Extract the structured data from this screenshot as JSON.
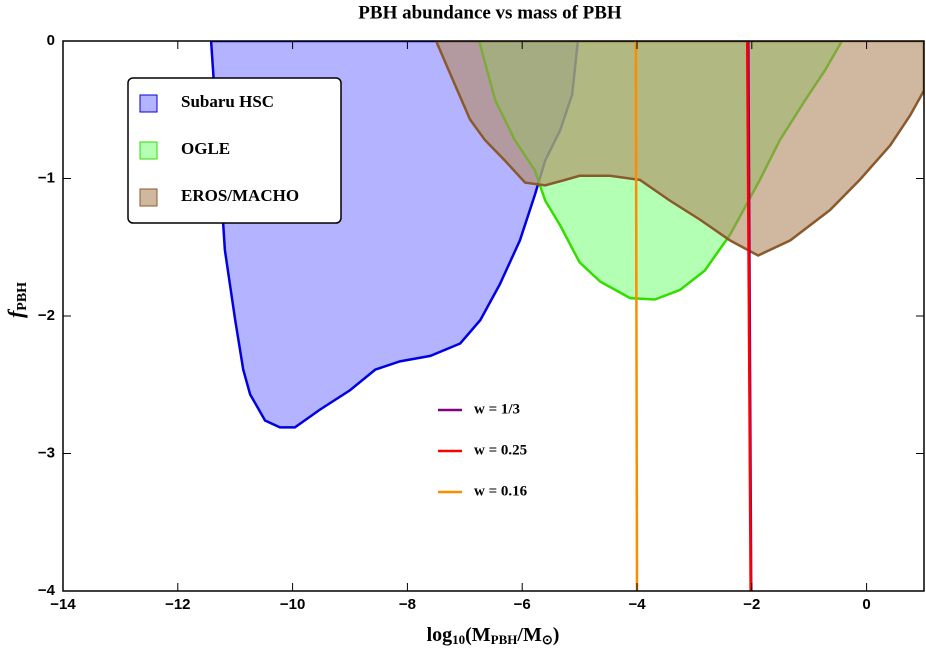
{
  "chart_data": {
    "type": "area",
    "title": "PBH abundance vs mass of PBH",
    "xlabel": [
      "log",
      "10",
      "(M",
      "PBH",
      "/M",
      "⊙",
      ")"
    ],
    "ylabel": [
      "f",
      "PBH"
    ],
    "xlim": [
      -14,
      1
    ],
    "ylim": [
      -4,
      0
    ],
    "xticks": [
      {
        "value": -14,
        "label": "−14"
      },
      {
        "value": -12,
        "label": "−12"
      },
      {
        "value": -10,
        "label": "−10"
      },
      {
        "value": -8,
        "label": "−8"
      },
      {
        "value": -6,
        "label": "−6"
      },
      {
        "value": -4,
        "label": "−4"
      },
      {
        "value": -2,
        "label": "−2"
      },
      0
    ],
    "yticks": [
      0,
      {
        "value": -1,
        "label": "−1"
      },
      {
        "value": -2,
        "label": "−2"
      },
      {
        "value": -3,
        "label": "−3"
      },
      {
        "value": -4,
        "label": "−4"
      }
    ],
    "legend": "upper left",
    "series": [
      {
        "name": "Subaru HSC",
        "type": "area",
        "color": "#8080ff",
        "edge": "#0000e0",
        "x": [
          -11.42,
          -11.26,
          -11.18,
          -11.0,
          -10.86,
          -10.74,
          -10.48,
          -10.22,
          -9.96,
          -9.52,
          -9.0,
          -8.56,
          -8.13,
          -7.6,
          -7.08,
          -6.73,
          -6.39,
          -6.04,
          -5.78,
          -5.6,
          -5.34,
          -5.13,
          -5.03
        ],
        "y": [
          0,
          -1.0,
          -1.52,
          -2.03,
          -2.39,
          -2.57,
          -2.76,
          -2.81,
          -2.81,
          -2.68,
          -2.54,
          -2.39,
          -2.33,
          -2.29,
          -2.2,
          -2.03,
          -1.77,
          -1.45,
          -1.12,
          -0.87,
          -0.65,
          -0.39,
          0
        ]
      },
      {
        "name": "OGLE",
        "type": "area",
        "color": "#80ff80",
        "edge": "#33dd00",
        "x": [
          -6.75,
          -6.47,
          -6.13,
          -5.78,
          -5.6,
          -5.34,
          -5.0,
          -4.64,
          -4.12,
          -3.69,
          -3.25,
          -2.82,
          -2.38,
          -1.86,
          -1.51,
          -1.07,
          -0.72,
          -0.43
        ],
        "y": [
          0,
          -0.43,
          -0.72,
          -0.94,
          -1.16,
          -1.34,
          -1.61,
          -1.75,
          -1.87,
          -1.88,
          -1.81,
          -1.67,
          -1.41,
          -1.01,
          -0.72,
          -0.43,
          -0.21,
          0
        ]
      },
      {
        "name": "EROS/MACHO",
        "type": "area",
        "color": "#b08860",
        "edge": "#8b5a2b",
        "x": [
          -7.5,
          -7.17,
          -6.91,
          -6.65,
          -6.3,
          -5.95,
          -5.6,
          -5.25,
          -5.0,
          -4.47,
          -3.95,
          -3.43,
          -2.9,
          -2.38,
          -1.89,
          -1.33,
          -0.64,
          -0.12,
          0.41,
          0.76,
          1.0,
          1.0
        ],
        "y": [
          0,
          -0.32,
          -0.57,
          -0.72,
          -0.87,
          -1.03,
          -1.05,
          -1.01,
          -0.98,
          -0.98,
          -1.01,
          -1.16,
          -1.3,
          -1.45,
          -1.56,
          -1.45,
          -1.23,
          -1.01,
          -0.76,
          -0.54,
          -0.36,
          0
        ]
      },
      {
        "name": "w = 1/3",
        "type": "line",
        "color": "#800080",
        "x": [
          -2.06,
          -2.01
        ],
        "y": [
          0,
          -4
        ]
      },
      {
        "name": "w = 0.25",
        "type": "line",
        "color": "#ff0000",
        "x": [
          -2.08,
          -2.02
        ],
        "y": [
          0,
          -4
        ]
      },
      {
        "name": "w = 0.16",
        "type": "line",
        "color": "#ff8c00",
        "x": [
          -4.02,
          -4.0
        ],
        "y": [
          0,
          -4
        ]
      }
    ]
  }
}
